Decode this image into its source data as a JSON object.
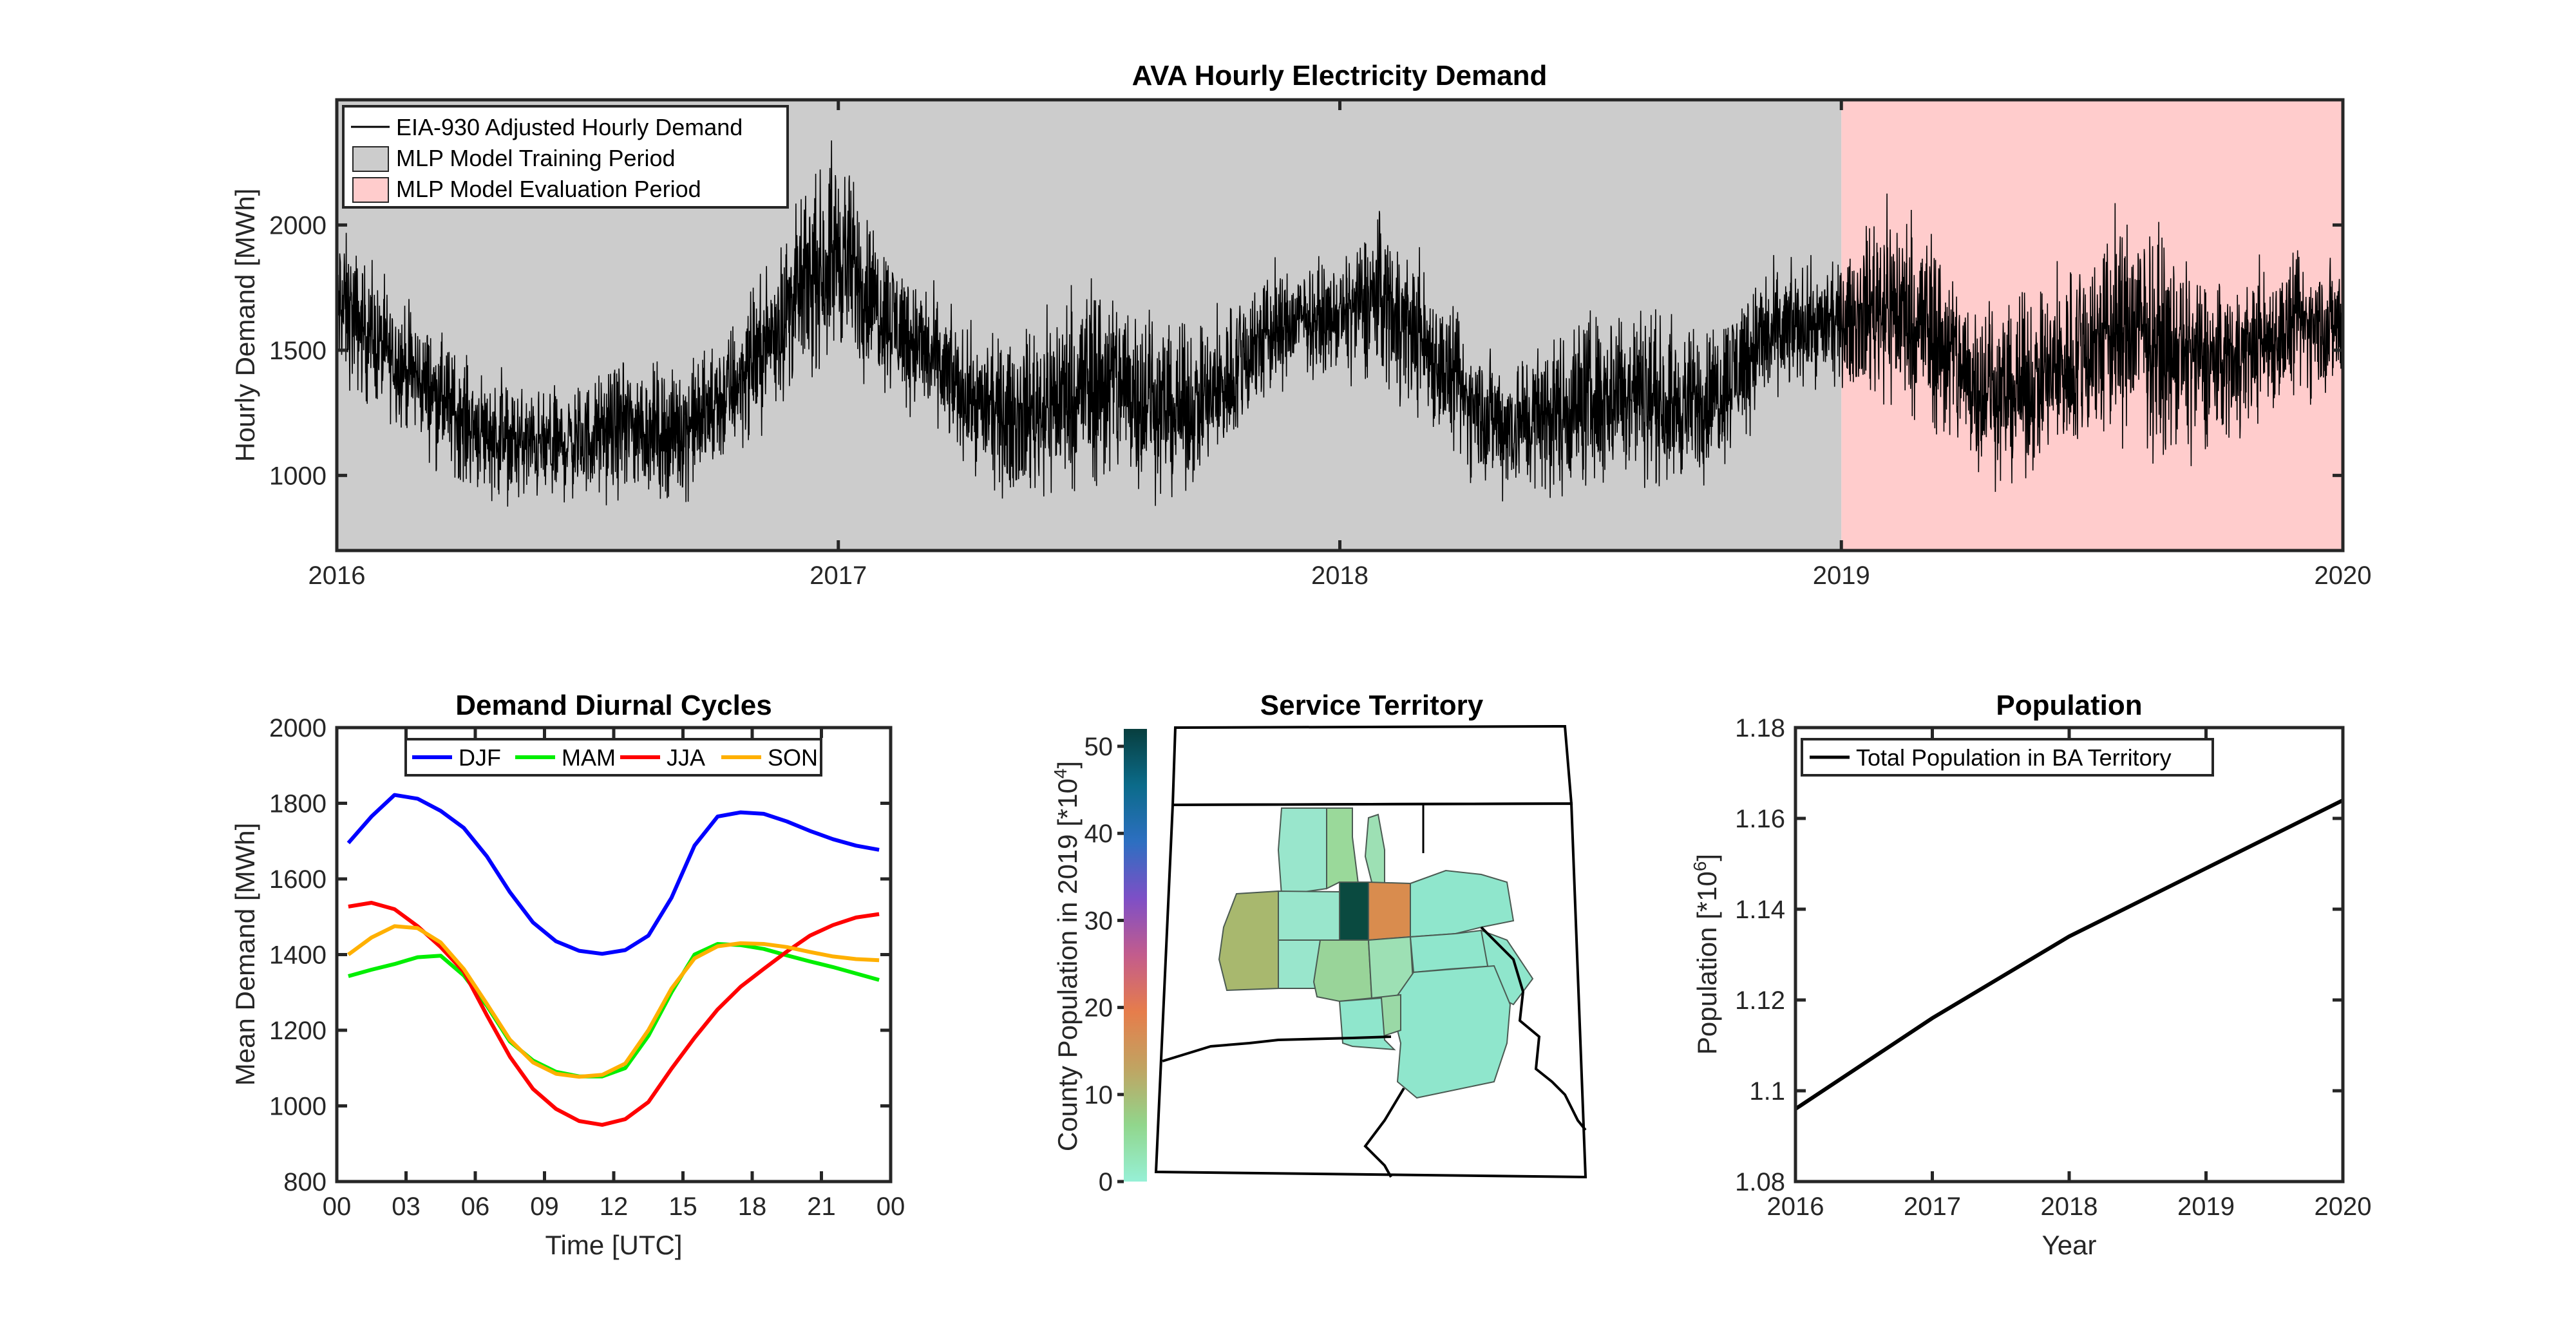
{
  "chart_data": [
    {
      "type": "line",
      "title": "AVA Hourly Electricity Demand",
      "ylabel": "Hourly Demand [MWh]",
      "xlabel": "",
      "xticks": [
        "2016",
        "2017",
        "2018",
        "2019",
        "2020"
      ],
      "yticks": [
        "1000",
        "1500",
        "2000"
      ],
      "xlim": [
        2016,
        2020
      ],
      "ylim": [
        700,
        2500
      ],
      "legend_position": "top-left",
      "legend": [
        {
          "label": "EIA-930 Adjusted Hourly Demand",
          "kind": "line",
          "color": "#000000"
        },
        {
          "label": "MLP Model Training Period",
          "kind": "patch",
          "color": "#cccccc"
        },
        {
          "label": "MLP Model Evaluation Period",
          "kind": "patch",
          "color": "#ffcccc"
        }
      ],
      "periods": [
        {
          "name": "MLP Model Training Period",
          "start": 2016,
          "end": 2019,
          "color": "#cccccc"
        },
        {
          "name": "MLP Model Evaluation Period",
          "start": 2019,
          "end": 2020,
          "color": "#ffcccc"
        }
      ],
      "series": [
        {
          "name": "EIA-930 Adjusted Hourly Demand",
          "color": "#000000",
          "x": [
            2016.0,
            2016.08,
            2016.17,
            2016.25,
            2016.33,
            2016.42,
            2016.5,
            2016.58,
            2016.67,
            2016.75,
            2016.83,
            2016.92,
            2017.0,
            2017.08,
            2017.17,
            2017.25,
            2017.33,
            2017.42,
            2017.5,
            2017.58,
            2017.67,
            2017.75,
            2017.83,
            2017.92,
            2018.0,
            2018.08,
            2018.17,
            2018.25,
            2018.33,
            2018.42,
            2018.5,
            2018.58,
            2018.67,
            2018.75,
            2018.83,
            2018.92,
            2019.0,
            2019.08,
            2019.17,
            2019.25,
            2019.33,
            2019.42,
            2019.5,
            2019.58,
            2019.67,
            2019.75,
            2019.83,
            2019.92,
            2020.0
          ],
          "low": [
            1350,
            1250,
            1100,
            950,
            880,
            870,
            890,
            900,
            880,
            960,
            1150,
            1350,
            1450,
            1350,
            1200,
            1050,
            900,
            880,
            900,
            920,
            900,
            980,
            1200,
            1400,
            1400,
            1350,
            1200,
            1000,
            900,
            880,
            920,
            950,
            930,
            1000,
            1200,
            1350,
            1350,
            1250,
            1150,
            1000,
            950,
            1000,
            1050,
            1100,
            1050,
            1100,
            1200,
            1300,
            1300
          ],
          "high": [
            2050,
            1800,
            1650,
            1500,
            1400,
            1350,
            1400,
            1500,
            1450,
            1550,
            1750,
            2100,
            2350,
            2000,
            1800,
            1600,
            1550,
            1700,
            1850,
            1800,
            1600,
            1650,
            1850,
            1850,
            1850,
            2100,
            1850,
            1600,
            1500,
            1600,
            1700,
            1750,
            1600,
            1650,
            1850,
            1850,
            1850,
            2150,
            2050,
            1800,
            1700,
            1800,
            2000,
            2100,
            1900,
            1800,
            1850,
            1900,
            1900
          ]
        }
      ]
    },
    {
      "type": "line",
      "title": "Demand Diurnal Cycles",
      "xlabel": "Time [UTC]",
      "ylabel": "Mean Demand [MWh]",
      "xticks": [
        "00",
        "03",
        "06",
        "09",
        "12",
        "15",
        "18",
        "21",
        "00"
      ],
      "xtick_values": [
        0,
        3,
        6,
        9,
        12,
        15,
        18,
        21,
        24
      ],
      "yticks": [
        "800",
        "1000",
        "1200",
        "1400",
        "1600",
        "1800",
        "2000"
      ],
      "xlim": [
        0,
        24
      ],
      "ylim": [
        800,
        2000
      ],
      "legend_position": "top",
      "x": [
        0.5,
        1.5,
        2.5,
        3.5,
        4.5,
        5.5,
        6.5,
        7.5,
        8.5,
        9.5,
        10.5,
        11.5,
        12.5,
        13.5,
        14.5,
        15.5,
        16.5,
        17.5,
        18.5,
        19.5,
        20.5,
        21.5,
        22.5,
        23.5
      ],
      "series": [
        {
          "name": "DJF",
          "color": "#0000ff",
          "values": [
            1695,
            1765,
            1822,
            1812,
            1780,
            1735,
            1660,
            1565,
            1485,
            1435,
            1410,
            1402,
            1412,
            1450,
            1550,
            1688,
            1765,
            1776,
            1772,
            1752,
            1727,
            1705,
            1688,
            1677
          ]
        },
        {
          "name": "MAM",
          "color": "#00ee00",
          "values": [
            1343,
            1360,
            1375,
            1393,
            1397,
            1345,
            1265,
            1170,
            1120,
            1090,
            1078,
            1078,
            1100,
            1185,
            1300,
            1400,
            1428,
            1425,
            1415,
            1398,
            1382,
            1367,
            1350,
            1333
          ]
        },
        {
          "name": "JJA",
          "color": "#ff0000",
          "values": [
            1527,
            1537,
            1520,
            1475,
            1420,
            1355,
            1240,
            1130,
            1045,
            992,
            960,
            950,
            965,
            1010,
            1098,
            1180,
            1255,
            1315,
            1362,
            1408,
            1450,
            1478,
            1498,
            1507
          ]
        },
        {
          "name": "SON",
          "color": "#ffb000",
          "values": [
            1400,
            1445,
            1475,
            1470,
            1432,
            1362,
            1270,
            1175,
            1115,
            1085,
            1077,
            1082,
            1112,
            1200,
            1310,
            1390,
            1422,
            1430,
            1428,
            1420,
            1407,
            1395,
            1388,
            1385
          ]
        }
      ]
    },
    {
      "type": "map",
      "title": "Service Territory",
      "colorbar_label": "County Population in 2019 [*10",
      "colorbar_label_exp": "4",
      "colorbar_label_end": "]",
      "colorbar_ticks": [
        "0",
        "10",
        "20",
        "30",
        "40",
        "50"
      ],
      "colorbar_tick_values": [
        0,
        10,
        20,
        30,
        40,
        50
      ],
      "colorbar_range": [
        0,
        52
      ],
      "colorbar_colors": [
        "#96f0d6",
        "#91d68c",
        "#c0a462",
        "#e67d4b",
        "#c35c8c",
        "#7e4fc6",
        "#2d6fc1",
        "#0b6b8a",
        "#083e3e"
      ],
      "counties": [
        {
          "fill": "#99e6cc"
        },
        {
          "fill": "#9ad99a"
        },
        {
          "fill": "#9de0b4"
        },
        {
          "fill": "#a8b86e"
        },
        {
          "fill": "#99e6cc"
        },
        {
          "fill": "#0a4a40"
        },
        {
          "fill": "#d98c4e"
        },
        {
          "fill": "#8fe6cc"
        },
        {
          "fill": "#99e6cc"
        },
        {
          "fill": "#99d499"
        },
        {
          "fill": "#9de0b4"
        },
        {
          "fill": "#8fe6cc"
        },
        {
          "fill": "#8fe6cc"
        },
        {
          "fill": "#8fe6cc"
        },
        {
          "fill": "#9ad9a6"
        },
        {
          "fill": "#8fe6cc"
        }
      ]
    },
    {
      "type": "line",
      "title": "Population",
      "xlabel": "Year",
      "ylabel": "Population [*10",
      "ylabel_exp": "6",
      "ylabel_end": "]",
      "xticks": [
        "2016",
        "2017",
        "2018",
        "2019",
        "2020"
      ],
      "yticks": [
        "1.08",
        "1.1",
        "1.12",
        "1.14",
        "1.16",
        "1.18"
      ],
      "xlim": [
        2016,
        2020
      ],
      "ylim": [
        1.08,
        1.18
      ],
      "legend_position": "top-left",
      "x": [
        2016,
        2017,
        2018,
        2019,
        2020
      ],
      "series": [
        {
          "name": "Total Population in BA Territory",
          "color": "#000000",
          "values": [
            1.096,
            1.116,
            1.134,
            1.149,
            1.164
          ]
        }
      ]
    }
  ]
}
